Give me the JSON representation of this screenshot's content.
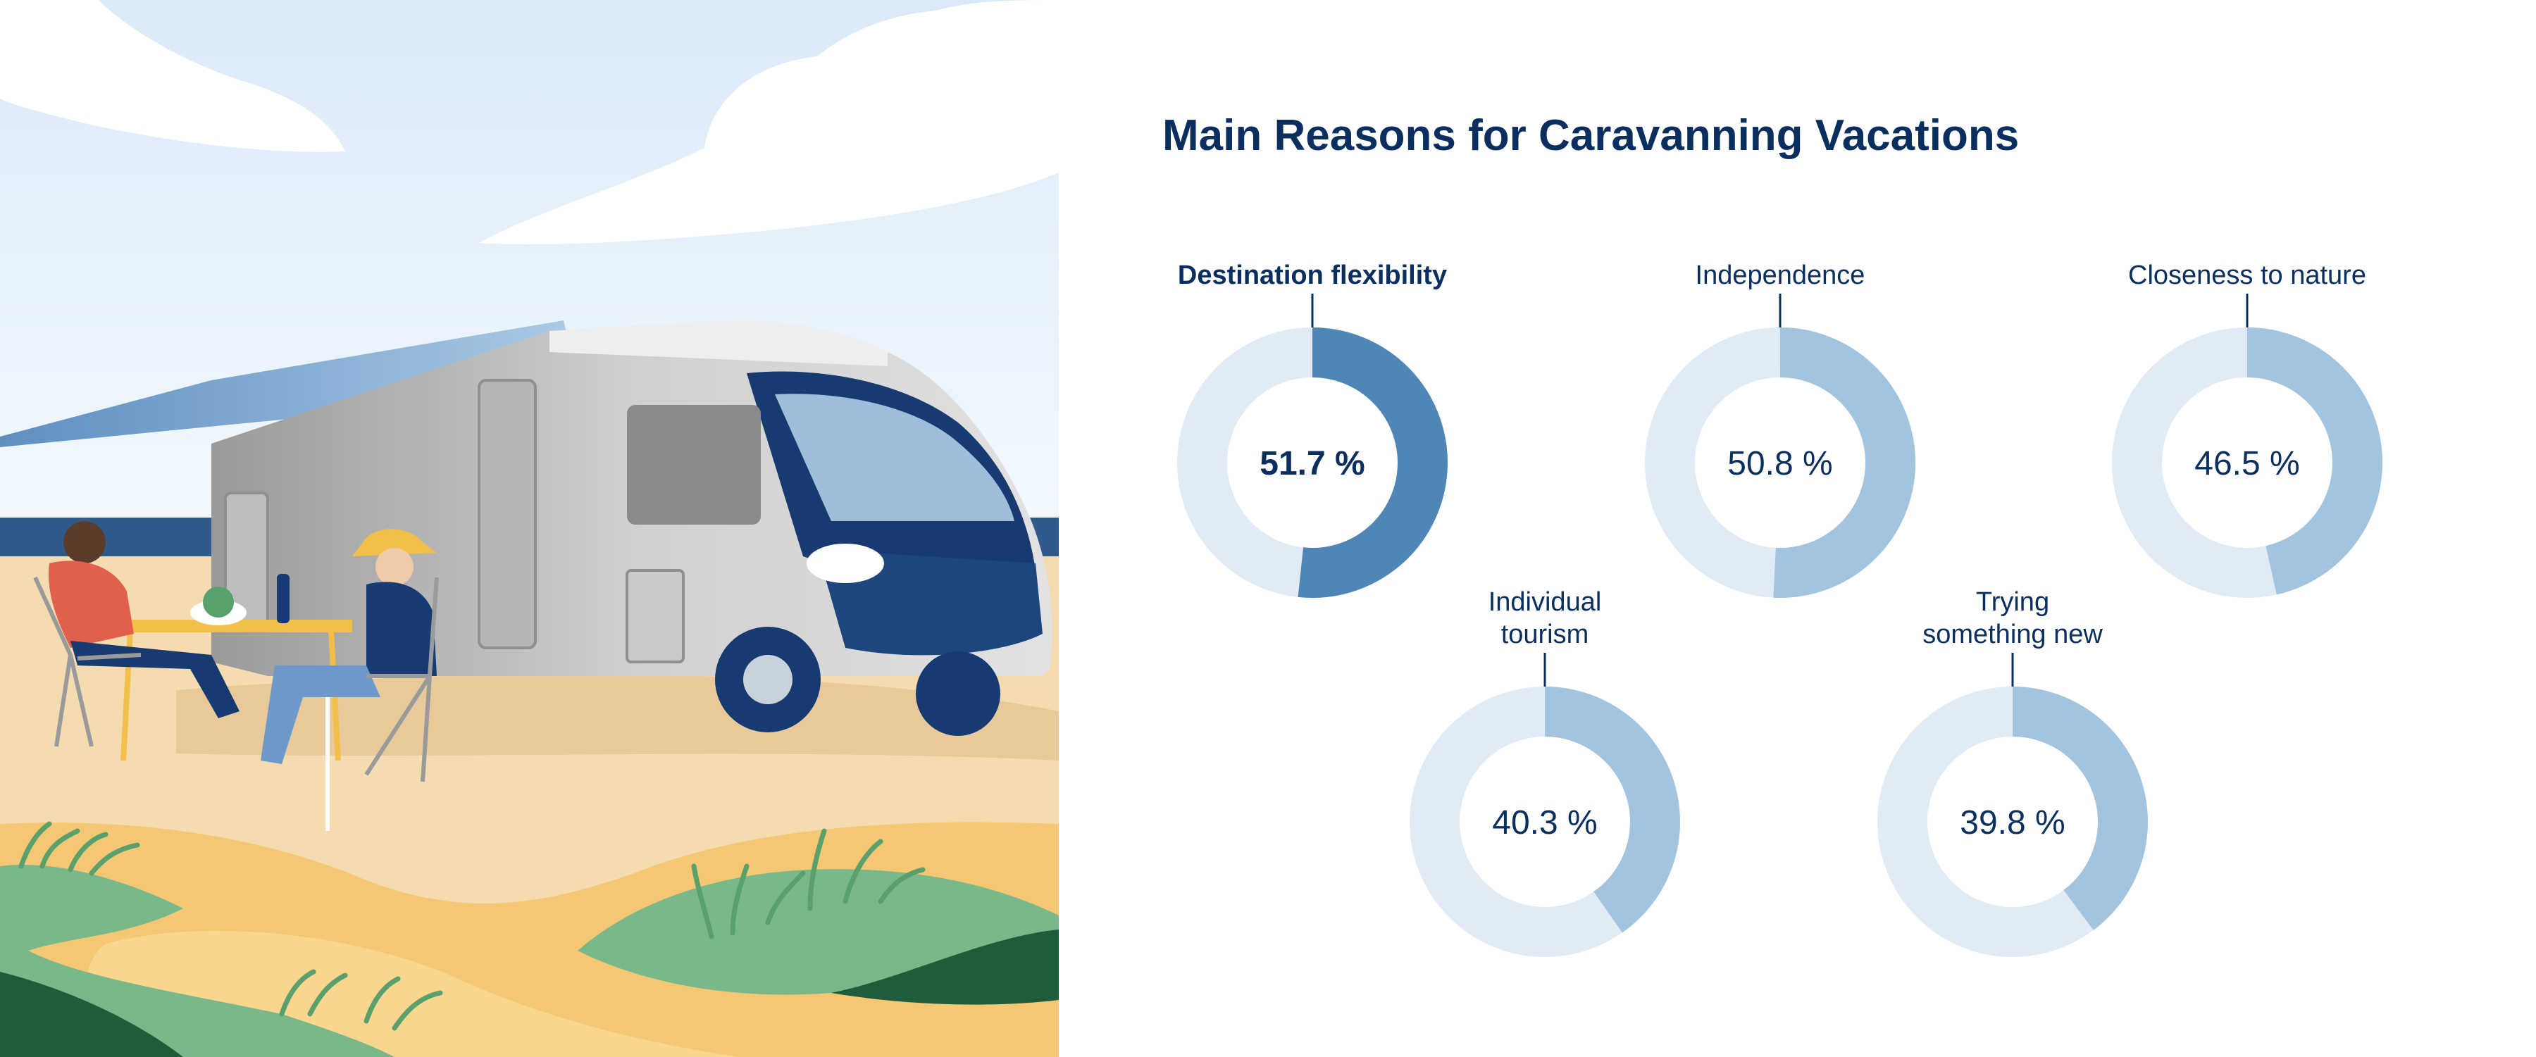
{
  "chart_data": {
    "type": "donut",
    "title": "Main Reasons for Caravanning Vacations",
    "unit": "%",
    "colors": {
      "track": "#e1ebf5",
      "highlight": "#4f86b6",
      "normal": "#a3c4df",
      "text": "#0a2f5f",
      "connector": "#0a2f5f"
    },
    "items": [
      {
        "label_lines": [
          "Destination flexibility"
        ],
        "value": 51.7,
        "value_text": "51.7 %",
        "highlighted": true
      },
      {
        "label_lines": [
          "Independence"
        ],
        "value": 50.8,
        "value_text": "50.8 %",
        "highlighted": false
      },
      {
        "label_lines": [
          "Closeness to nature"
        ],
        "value": 46.5,
        "value_text": "46.5 %",
        "highlighted": false
      },
      {
        "label_lines": [
          "Individual",
          "tourism"
        ],
        "value": 40.3,
        "value_text": "40.3 %",
        "highlighted": false
      },
      {
        "label_lines": [
          "Trying",
          "something new"
        ],
        "value": 39.8,
        "value_text": "39.8 %",
        "highlighted": false
      }
    ]
  },
  "illustration": {
    "subject": "motorhome on a beach with two people at a camping table",
    "colors": {
      "sky": "#eaf4fc",
      "sea": "#2f5a8c",
      "sand": "#f5dcb0",
      "dune": "#f3c774",
      "grass": "#7ab88a",
      "grass_dark": "#1f5c3a",
      "vehicle_body": "#d3d3d3",
      "vehicle_front": "#173a70",
      "awning": "#8db2d6"
    }
  }
}
